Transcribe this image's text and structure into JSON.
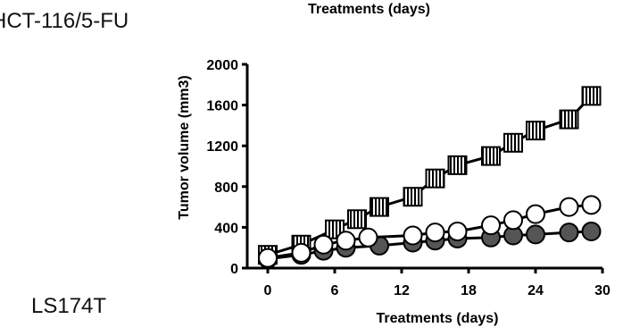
{
  "panel_labels": {
    "top": "HCT-116/5-FU",
    "bottom": "LS174T"
  },
  "top_partial_xlabel": "Treatments (days)",
  "chart_data": {
    "type": "line",
    "xlabel": "Treatments (days)",
    "ylabel": "Tumor volume (mm3)",
    "xlim": [
      0,
      30
    ],
    "ylim": [
      0,
      2000
    ],
    "xticks": [
      0,
      6,
      12,
      18,
      24,
      30
    ],
    "yticks": [
      0,
      400,
      800,
      1200,
      1600,
      2000
    ],
    "grid": false,
    "legend": "none",
    "series": [
      {
        "marker": "square-striped",
        "color": "#000000",
        "x": [
          0,
          3,
          6,
          8,
          10,
          13,
          15,
          17,
          20,
          22,
          24,
          27,
          29
        ],
        "y": [
          130,
          230,
          380,
          480,
          600,
          700,
          880,
          1010,
          1100,
          1230,
          1350,
          1460,
          1690
        ]
      },
      {
        "marker": "circle-filled",
        "color": "#555555",
        "x": [
          0,
          3,
          5,
          7,
          10,
          13,
          15,
          17,
          20,
          22,
          24,
          27,
          29
        ],
        "y": [
          90,
          130,
          170,
          200,
          220,
          250,
          270,
          290,
          300,
          320,
          330,
          350,
          360
        ]
      },
      {
        "marker": "circle-open",
        "color": "#ffffff",
        "x": [
          0,
          3,
          5,
          7,
          9,
          13,
          15,
          17,
          20,
          22,
          24,
          27,
          29
        ],
        "y": [
          100,
          150,
          230,
          270,
          300,
          320,
          350,
          360,
          420,
          470,
          530,
          600,
          620
        ]
      }
    ]
  }
}
